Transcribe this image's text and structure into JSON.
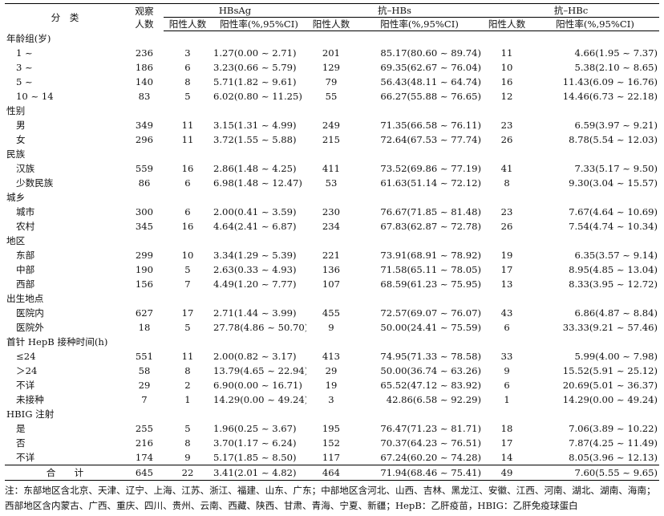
{
  "headers": {
    "category": "分　类",
    "observed_line1": "观察",
    "observed_line2": "人数",
    "hbsag": "HBsAg",
    "antihbs": "抗–HBs",
    "antihbc": "抗–HBc",
    "pos_count": "阳性人数",
    "pos_rate": "阳性率(%,95%CI)"
  },
  "groups": [
    {
      "label": "年龄组(岁)",
      "rows": [
        [
          "1 ~",
          "236",
          "3",
          "1.27(0.00 ~ 2.71)",
          "201",
          "85.17(80.60 ~ 89.74)",
          "11",
          "4.66(1.95 ~ 7.37)"
        ],
        [
          "3 ~",
          "186",
          "6",
          "3.23(0.66 ~ 5.79)",
          "129",
          "69.35(62.67 ~ 76.04)",
          "10",
          "5.38(2.10 ~ 8.65)"
        ],
        [
          "5 ~",
          "140",
          "8",
          "5.71(1.82 ~ 9.61)",
          "79",
          "56.43(48.11 ~ 64.74)",
          "16",
          "11.43(6.09 ~ 16.76)"
        ],
        [
          "10 ~ 14",
          "83",
          "5",
          "6.02(0.80 ~ 11.25)",
          "55",
          "66.27(55.88 ~ 76.65)",
          "12",
          "14.46(6.73 ~ 22.18)"
        ]
      ]
    },
    {
      "label": "性别",
      "rows": [
        [
          "男",
          "349",
          "11",
          "3.15(1.31 ~ 4.99)",
          "249",
          "71.35(66.58 ~ 76.11)",
          "23",
          "6.59(3.97 ~ 9.21)"
        ],
        [
          "女",
          "296",
          "11",
          "3.72(1.55 ~ 5.88)",
          "215",
          "72.64(67.53 ~ 77.74)",
          "26",
          "8.78(5.54 ~ 12.03)"
        ]
      ]
    },
    {
      "label": "民族",
      "rows": [
        [
          "汉族",
          "559",
          "16",
          "2.86(1.48 ~ 4.25)",
          "411",
          "73.52(69.86 ~ 77.19)",
          "41",
          "7.33(5.17 ~ 9.50)"
        ],
        [
          "少数民族",
          "86",
          "6",
          "6.98(1.48 ~ 12.47)",
          "53",
          "61.63(51.14 ~ 72.12)",
          "8",
          "9.30(3.04 ~ 15.57)"
        ]
      ]
    },
    {
      "label": "城乡",
      "rows": [
        [
          "城市",
          "300",
          "6",
          "2.00(0.41 ~ 3.59)",
          "230",
          "76.67(71.85 ~ 81.48)",
          "23",
          "7.67(4.64 ~ 10.69)"
        ],
        [
          "农村",
          "345",
          "16",
          "4.64(2.41 ~ 6.87)",
          "234",
          "67.83(62.87 ~ 72.78)",
          "26",
          "7.54(4.74 ~ 10.34)"
        ]
      ]
    },
    {
      "label": "地区",
      "rows": [
        [
          "东部",
          "299",
          "10",
          "3.34(1.29 ~ 5.39)",
          "221",
          "73.91(68.91 ~ 78.92)",
          "19",
          "6.35(3.57 ~ 9.14)"
        ],
        [
          "中部",
          "190",
          "5",
          "2.63(0.33 ~ 4.93)",
          "136",
          "71.58(65.11 ~ 78.05)",
          "17",
          "8.95(4.85 ~ 13.04)"
        ],
        [
          "西部",
          "156",
          "7",
          "4.49(1.20 ~ 7.77)",
          "107",
          "68.59(61.23 ~ 75.95)",
          "13",
          "8.33(3.95 ~ 12.72)"
        ]
      ]
    },
    {
      "label": "出生地点",
      "rows": [
        [
          "医院内",
          "627",
          "17",
          "2.71(1.44 ~ 3.99)",
          "455",
          "72.57(69.07 ~ 76.07)",
          "43",
          "6.86(4.87 ~ 8.84)"
        ],
        [
          "医院外",
          "18",
          "5",
          "27.78(4.86 ~ 50.70)",
          "9",
          "50.00(24.41 ~ 75.59)",
          "6",
          "33.33(9.21 ~ 57.46)"
        ]
      ]
    },
    {
      "label": "首针 HepB 接种时间(h)",
      "rows": [
        [
          "≤24",
          "551",
          "11",
          "2.00(0.82 ~ 3.17)",
          "413",
          "74.95(71.33 ~ 78.58)",
          "33",
          "5.99(4.00 ~ 7.98)"
        ],
        [
          "＞24",
          "58",
          "8",
          "13.79(4.65 ~ 22.94)",
          "29",
          "50.00(36.74 ~ 63.26)",
          "9",
          "15.52(5.91 ~ 25.12)"
        ],
        [
          "不详",
          "29",
          "2",
          "6.90(0.00 ~ 16.71)",
          "19",
          "65.52(47.12 ~ 83.92)",
          "6",
          "20.69(5.01 ~ 36.37)"
        ],
        [
          "未接种",
          "7",
          "1",
          "14.29(0.00 ~ 49.24)",
          "3",
          "42.86(6.58 ~ 92.29)",
          "1",
          "14.29(0.00 ~ 49.24)"
        ]
      ]
    },
    {
      "label": "HBIG 注射",
      "rows": [
        [
          "是",
          "255",
          "5",
          "1.96(0.25 ~ 3.67)",
          "195",
          "76.47(71.23 ~ 81.71)",
          "18",
          "7.06(3.89 ~ 10.22)"
        ],
        [
          "否",
          "216",
          "8",
          "3.70(1.17 ~ 6.24)",
          "152",
          "70.37(64.23 ~ 76.51)",
          "17",
          "7.87(4.25 ~ 11.49)"
        ],
        [
          "不详",
          "174",
          "9",
          "5.17(1.85 ~ 8.50)",
          "117",
          "67.24(60.20 ~ 74.28)",
          "14",
          "8.05(3.96 ~ 12.13)"
        ]
      ]
    }
  ],
  "total": [
    "合　　计",
    "645",
    "22",
    "3.41(2.01 ~ 4.82)",
    "464",
    "71.94(68.46 ~ 75.41)",
    "49",
    "7.60(5.55 ~ 9.65)"
  ],
  "note": "注：东部地区含北京、天津、辽宁、上海、江苏、浙江、福建、山东、广东；中部地区含河北、山西、吉林、黑龙江、安徽、江西、河南、湖北、湖南、海南；西部地区含内蒙古、广西、重庆、四川、贵州、云南、西藏、陕西、甘肃、青海、宁夏、新疆；HepB：乙肝疫苗，HBIG：乙肝免疫球蛋白"
}
